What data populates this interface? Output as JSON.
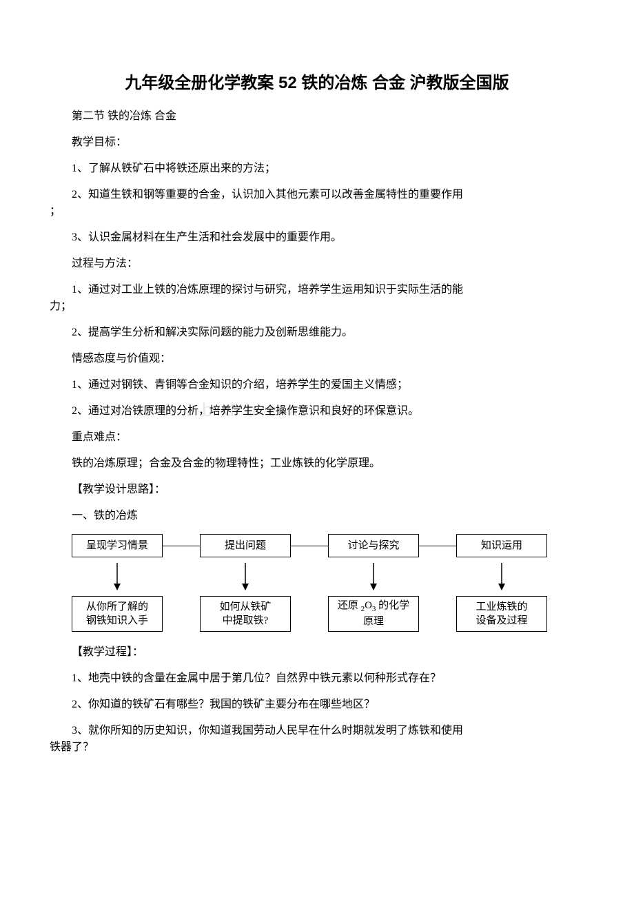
{
  "title": "九年级全册化学教案 52 铁的冶炼 合金 沪教版全国版",
  "p1": "第二节 铁的冶炼 合金",
  "p2": "教学目标：",
  "p3": "1、了解从铁矿石中将铁还原出来的方法；",
  "p4_a": "2、知道生铁和钢等重要的合金，认识加入其他元素可以改善金属特性的重要作用",
  "p4_b": "；",
  "p5": "3、认识金属材料在生产生活和社会发展中的重要作用。",
  "p6": "过程与方法：",
  "p7_a": "1、通过对工业上铁的冶炼原理的探讨与研究，培养学生运用知识于实际生活的能",
  "p7_b": "力；",
  "p8": "2、提高学生分析和解决实际问题的能力及创新思维能力。",
  "p9": "情感态度与价值观：",
  "p10": "1、通过对钢铁、青铜等合金知识的介绍，培养学生的爱国主义情感；",
  "watermark": "www.bdocx.com",
  "p11": "2、通过对冶铁原理的分析，培养学生安全操作意识和良好的环保意识。",
  "p12": "重点难点：",
  "p13": "铁的冶炼原理；合金及合金的物理特性；工业炼铁的化学原理。",
  "p14": "【教学设计思路】：",
  "p15": "一、铁的冶炼",
  "flow": {
    "top": [
      "呈现学习情景",
      "提出问题",
      "讨论与探究",
      "知识运用"
    ],
    "bottom_plain": [
      "从你所了解的\n钢铁知识入手",
      "如何从铁矿\n中提取铁?",
      "",
      "工业炼铁的\n设备及过程"
    ],
    "b3_prefix": "还原 ",
    "b3_sub1": "2",
    "b3_mid": "O",
    "b3_sub2": "3",
    "b3_suffix": " 的化学",
    "b3_line2": "原理",
    "box_border": "#000000",
    "bg": "#ffffff"
  },
  "p16": "【教学过程】：",
  "p17": "1、地壳中铁的含量在金属中居于第几位？自然界中铁元素以何种形式存在？",
  "p18": "2、你知道的铁矿石有哪些？我国的铁矿主要分布在哪些地区？",
  "p19_a": "3、就你所知的历史知识，你知道我国劳动人民早在什么时期就发明了炼铁和使用",
  "p19_b": "铁器了？"
}
